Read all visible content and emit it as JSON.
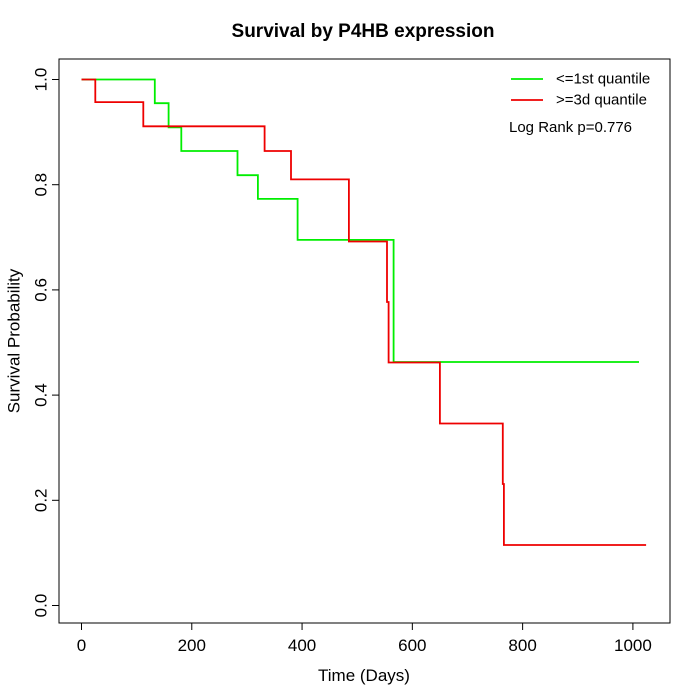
{
  "chart_data": {
    "type": "line",
    "step": true,
    "title": "Survival by P4HB expression",
    "xlabel": "Time (Days)",
    "ylabel": "Survival Probability",
    "xlim": [
      0,
      1000
    ],
    "ylim": [
      0,
      1
    ],
    "x_ticks": [
      0,
      200,
      400,
      600,
      800,
      1000
    ],
    "x_tick_labels": [
      "0",
      "200",
      "400",
      "600",
      "800",
      "1000"
    ],
    "y_ticks": [
      0,
      0.2,
      0.4,
      0.6,
      0.8,
      1.0
    ],
    "y_tick_labels": [
      "0.0",
      "0.2",
      "0.4",
      "0.6",
      "0.8",
      "1.0"
    ],
    "grid": false,
    "legend_position": "top-right",
    "annotation": "Log Rank p=0.776",
    "series": [
      {
        "name": "<=1st quantile",
        "color": "#00ee00",
        "x": [
          0,
          133,
          158,
          181,
          283,
          320,
          392,
          566,
          1011
        ],
        "y": [
          1.0,
          0.955,
          0.909,
          0.864,
          0.818,
          0.773,
          0.695,
          0.463,
          0.463
        ]
      },
      {
        "name": ">=3d quantile",
        "color": "#ee0000",
        "x": [
          0,
          25,
          112,
          332,
          380,
          485,
          554,
          557,
          650,
          764,
          766,
          1024
        ],
        "y": [
          1.0,
          0.957,
          0.911,
          0.864,
          0.81,
          0.692,
          0.577,
          0.462,
          0.346,
          0.231,
          0.115,
          0.115
        ]
      }
    ]
  }
}
